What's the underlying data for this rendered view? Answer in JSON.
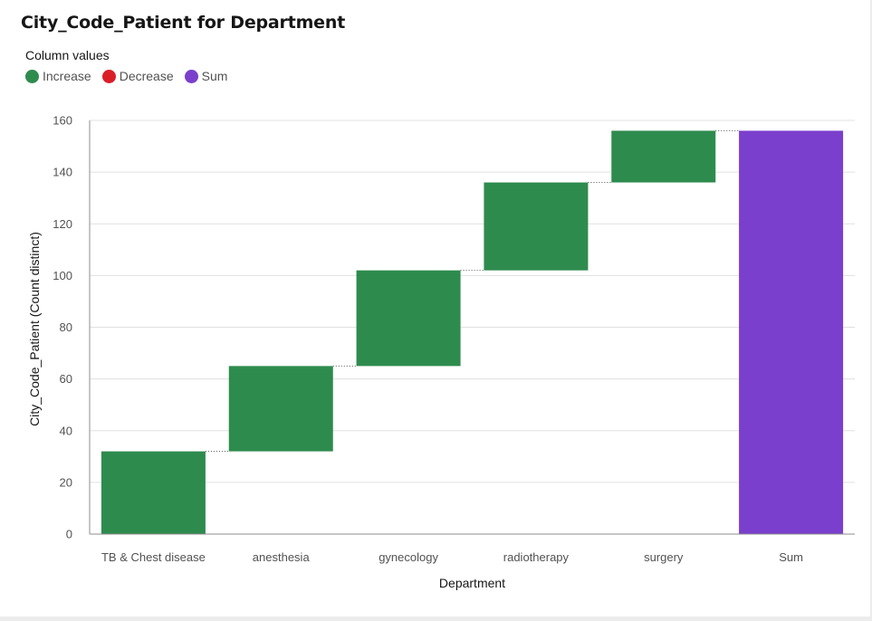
{
  "title": "City_Code_Patient for Department",
  "legend": {
    "title": "Column values",
    "items": [
      {
        "label": "Increase",
        "color": "#2e8b4e"
      },
      {
        "label": "Decrease",
        "color": "#da1e28"
      },
      {
        "label": "Sum",
        "color": "#7a3fcc"
      }
    ]
  },
  "chart_data": {
    "type": "bar",
    "subtype": "waterfall",
    "title": "City_Code_Patient for Department",
    "xlabel": "Department",
    "ylabel": "City_Code_Patient (Count distinct)",
    "ylim": [
      0,
      160
    ],
    "yticks": [
      0,
      20,
      40,
      60,
      80,
      100,
      120,
      140,
      160
    ],
    "grid": true,
    "legend_position": "top-left",
    "categories": [
      "TB & Chest disease",
      "anesthesia",
      "gynecology",
      "radiotherapy",
      "surgery",
      "Sum"
    ],
    "bars": [
      {
        "category": "TB & Chest disease",
        "kind": "Increase",
        "start": 0,
        "end": 32,
        "value": 32
      },
      {
        "category": "anesthesia",
        "kind": "Increase",
        "start": 32,
        "end": 65,
        "value": 33
      },
      {
        "category": "gynecology",
        "kind": "Increase",
        "start": 65,
        "end": 102,
        "value": 37
      },
      {
        "category": "radiotherapy",
        "kind": "Increase",
        "start": 102,
        "end": 136,
        "value": 34
      },
      {
        "category": "surgery",
        "kind": "Increase",
        "start": 136,
        "end": 156,
        "value": 20
      },
      {
        "category": "Sum",
        "kind": "Sum",
        "start": 0,
        "end": 156,
        "value": 156
      }
    ],
    "colors": {
      "Increase": "#2e8b4e",
      "Decrease": "#da1e28",
      "Sum": "#7a3fcc"
    }
  }
}
